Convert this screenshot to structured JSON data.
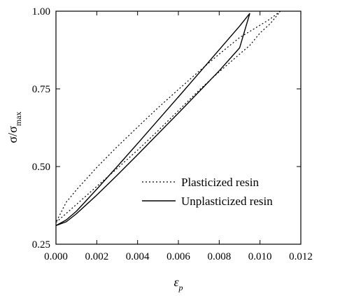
{
  "chart_data": {
    "type": "line",
    "xlabel": "ε",
    "xlabel_sub": "p",
    "ylabel": "σ/σ",
    "ylabel_sub": "max",
    "xlim": [
      0.0,
      0.012
    ],
    "ylim": [
      0.25,
      1.0
    ],
    "x_ticks": [
      "0.000",
      "0.002",
      "0.004",
      "0.006",
      "0.008",
      "0.010",
      "0.012"
    ],
    "y_ticks": [
      "0.25",
      "0.50",
      "0.75",
      "1.00"
    ],
    "grid": false,
    "legend_position": "center-right",
    "series": [
      {
        "name": "Plasticized resin",
        "style": "dotted",
        "color": "#000000",
        "loading": {
          "x": [
            0.0,
            0.001,
            0.002,
            0.003,
            0.004,
            0.005,
            0.006,
            0.007,
            0.008,
            0.009,
            0.0095,
            0.01,
            0.0105,
            0.011
          ],
          "y": [
            0.32,
            0.378,
            0.436,
            0.494,
            0.553,
            0.615,
            0.68,
            0.745,
            0.805,
            0.862,
            0.89,
            0.93,
            0.96,
            1.0
          ]
        },
        "unloading": {
          "x": [
            0.011,
            0.0108,
            0.0105,
            0.01,
            0.0095,
            0.009,
            0.008,
            0.007,
            0.006,
            0.005,
            0.004,
            0.003,
            0.002,
            0.001,
            0.0005,
            0.0
          ],
          "y": [
            1.0,
            0.99,
            0.975,
            0.955,
            0.935,
            0.915,
            0.862,
            0.806,
            0.748,
            0.689,
            0.627,
            0.564,
            0.497,
            0.425,
            0.385,
            0.32
          ]
        }
      },
      {
        "name": "Unplasticized resin",
        "style": "solid",
        "color": "#000000",
        "loading": {
          "x": [
            0.0,
            0.0005,
            0.001,
            0.002,
            0.003,
            0.004,
            0.005,
            0.006,
            0.007,
            0.008,
            0.009,
            0.0095
          ],
          "y": [
            0.31,
            0.322,
            0.348,
            0.408,
            0.472,
            0.538,
            0.605,
            0.672,
            0.74,
            0.808,
            0.882,
            0.993
          ]
        },
        "unloading": {
          "x": [
            0.0095,
            0.009,
            0.008,
            0.007,
            0.006,
            0.005,
            0.004,
            0.003,
            0.002,
            0.001,
            0.0005,
            0.0
          ],
          "y": [
            0.993,
            0.952,
            0.876,
            0.8,
            0.724,
            0.649,
            0.574,
            0.5,
            0.427,
            0.356,
            0.328,
            0.31
          ]
        }
      }
    ]
  }
}
